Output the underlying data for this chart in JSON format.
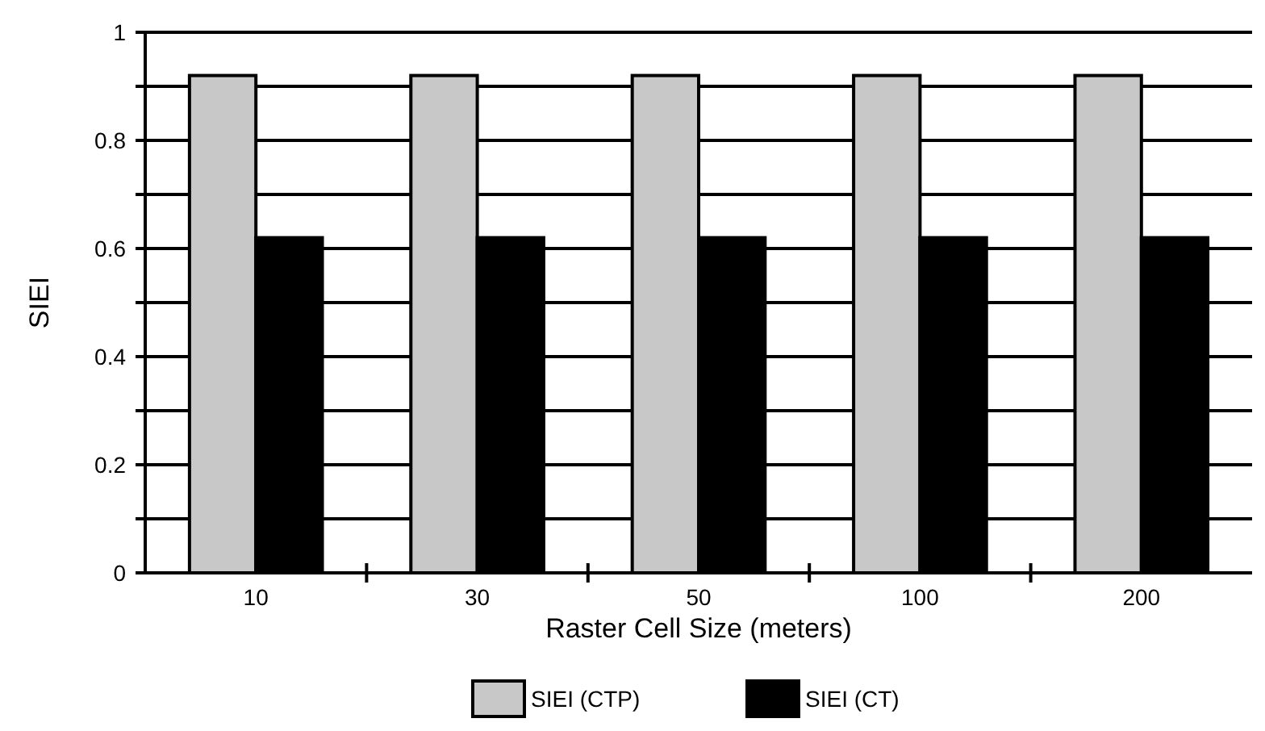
{
  "chart_data": {
    "type": "bar",
    "xlabel": "Raster Cell Size (meters)",
    "ylabel": "SIEI",
    "categories": [
      "10",
      "30",
      "50",
      "100",
      "200"
    ],
    "series": [
      {
        "name": "SIEI (CTP)",
        "color": "#c8c8c8",
        "values": [
          0.92,
          0.92,
          0.92,
          0.92,
          0.92
        ]
      },
      {
        "name": "SIEI (CT)",
        "color": "#000000",
        "values": [
          0.62,
          0.62,
          0.62,
          0.62,
          0.62
        ]
      }
    ],
    "ylim": [
      0,
      1
    ],
    "yticks": [
      0,
      {
        "value": 0.1,
        "label": null
      },
      "0.2",
      {
        "value": 0.3,
        "label": null
      },
      0.4,
      {
        "value": 0.5,
        "label": null
      },
      0.6,
      {
        "value": 0.7,
        "label": null
      },
      0.8,
      {
        "value": 0.9,
        "label": null
      },
      1
    ],
    "grid": "y",
    "legend": "bottom"
  }
}
